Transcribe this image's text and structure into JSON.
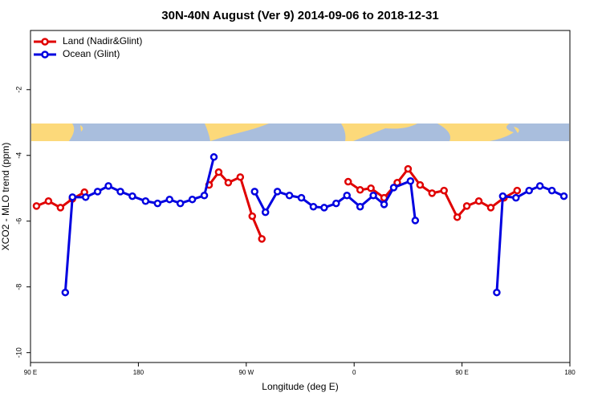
{
  "chart_data": {
    "type": "line",
    "title": "30N-40N August (Ver 9)   2014-09-06 to 2018-12-31",
    "xlabel": "Longitude (deg E)",
    "ylabel": "XCO2 - MLO trend (ppm)",
    "xlim": [
      90,
      540
    ],
    "xticks": [
      {
        "value": 90,
        "label": "90 E"
      },
      180,
      {
        "value": 270,
        "label": "90 W"
      },
      {
        "value": 360,
        "label": "0"
      },
      {
        "value": 450,
        "label": "90 E"
      },
      {
        "value": 540,
        "label": "180"
      }
    ],
    "ylim": [
      -10.3,
      -0.2
    ],
    "yticks": [
      -10,
      -8,
      -6,
      -4,
      -2
    ],
    "legend": "top-left",
    "series": [
      {
        "name": "Land (Nadir&Glint)",
        "color": "#e00000",
        "x": [
          95,
          105,
          115,
          125,
          135,
          190,
          239,
          247,
          255,
          265,
          275,
          283,
          320,
          355,
          365,
          374,
          385,
          396,
          405,
          415,
          425,
          435,
          446,
          454,
          464,
          474,
          485,
          496
        ],
        "values": [
          -5.54,
          -5.39,
          -5.59,
          -5.32,
          -5.12,
          null,
          -4.9,
          -4.51,
          -4.83,
          -4.66,
          -5.85,
          -6.54,
          null,
          -4.8,
          -5.05,
          -5.0,
          -5.29,
          -4.83,
          -4.41,
          -4.9,
          -5.15,
          -5.07,
          -5.88,
          -5.54,
          -5.39,
          -5.59,
          -5.29,
          -5.07
        ]
      },
      {
        "name": "Ocean (Glint)",
        "color": "#0000e0",
        "x": [
          119,
          125,
          136,
          146,
          155,
          165,
          175,
          186,
          196,
          206,
          215,
          225,
          235,
          243,
          260,
          277,
          286,
          296,
          306,
          316,
          326,
          335,
          345,
          354,
          365,
          376,
          385,
          393,
          407,
          411,
          450,
          479,
          484,
          495,
          506,
          515,
          525,
          535
        ],
        "values": [
          -8.17,
          -5.27,
          -5.27,
          -5.1,
          -4.93,
          -5.1,
          -5.24,
          -5.39,
          -5.46,
          -5.34,
          -5.46,
          -5.34,
          -5.22,
          -4.05,
          null,
          -5.1,
          -5.73,
          -5.1,
          -5.22,
          -5.29,
          -5.56,
          -5.59,
          -5.46,
          -5.22,
          -5.56,
          -5.22,
          -5.49,
          -4.98,
          -4.78,
          -5.98,
          null,
          -8.17,
          -5.24,
          -5.29,
          -5.07,
          -4.93,
          -5.07,
          -5.24
        ]
      }
    ]
  }
}
